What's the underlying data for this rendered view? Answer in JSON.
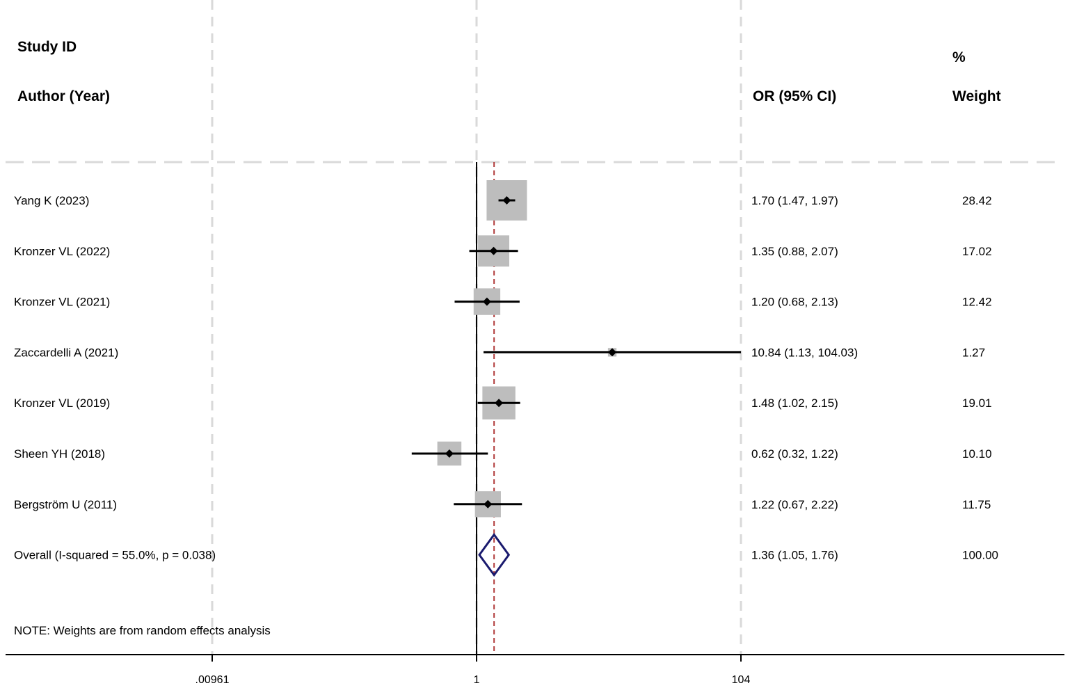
{
  "chart_data": {
    "type": "forest",
    "header": {
      "study_id": "Study ID",
      "author_year": "Author (Year)",
      "effect": "OR (95% CI)",
      "weight_top": "%",
      "weight_bottom": "Weight"
    },
    "studies": [
      {
        "label": "Yang K (2023)",
        "or": 1.7,
        "lo": 1.47,
        "hi": 1.97,
        "or_text": "1.70 (1.47, 1.97)",
        "weight": 28.42,
        "weight_text": "28.42"
      },
      {
        "label": "Kronzer VL (2022)",
        "or": 1.35,
        "lo": 0.88,
        "hi": 2.07,
        "or_text": "1.35 (0.88, 2.07)",
        "weight": 17.02,
        "weight_text": "17.02"
      },
      {
        "label": "Kronzer VL (2021)",
        "or": 1.2,
        "lo": 0.68,
        "hi": 2.13,
        "or_text": "1.20 (0.68, 2.13)",
        "weight": 12.42,
        "weight_text": "12.42"
      },
      {
        "label": "Zaccardelli A (2021)",
        "or": 10.84,
        "lo": 1.13,
        "hi": 104.03,
        "or_text": "10.84 (1.13, 104.03)",
        "weight": 1.27,
        "weight_text": "1.27"
      },
      {
        "label": "Kronzer VL (2019)",
        "or": 1.48,
        "lo": 1.02,
        "hi": 2.15,
        "or_text": "1.48 (1.02, 2.15)",
        "weight": 19.01,
        "weight_text": "19.01"
      },
      {
        "label": "Sheen YH (2018)",
        "or": 0.62,
        "lo": 0.32,
        "hi": 1.22,
        "or_text": "0.62 (0.32, 1.22)",
        "weight": 10.1,
        "weight_text": "10.10"
      },
      {
        "label": "Bergström U (2011)",
        "or": 1.22,
        "lo": 0.67,
        "hi": 2.22,
        "or_text": "1.22 (0.67, 2.22)",
        "weight": 11.75,
        "weight_text": "11.75"
      }
    ],
    "overall": {
      "label": "Overall  (I-squared = 55.0%, p = 0.038)",
      "or": 1.36,
      "lo": 1.05,
      "hi": 1.76,
      "or_text": "1.36 (1.05, 1.76)",
      "weight_text": "100.00"
    },
    "note": "NOTE: Weights are from random effects analysis",
    "x_scale": "log",
    "x_ticks": [
      {
        "value": 0.00961,
        "label": ".00961"
      },
      {
        "value": 1,
        "label": "1"
      },
      {
        "value": 104,
        "label": "104"
      }
    ],
    "xlim": [
      0.00961,
      104
    ],
    "null_line": 1,
    "colors": {
      "weight_box": "#bdbdbd",
      "ci_line": "#000000",
      "overall_diamond": "#1a1a6e",
      "overall_line": "#b03a3a",
      "grid_dash": "#d9d9d9"
    }
  }
}
